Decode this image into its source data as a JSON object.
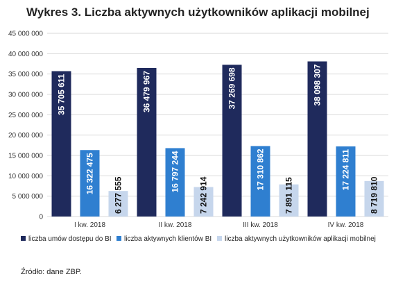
{
  "title": "Wykres 3. Liczba aktywnych użytkowników aplikacji mobilnej",
  "source": "Źródło: dane ZBP.",
  "chart_data": {
    "type": "bar",
    "categories": [
      "I kw. 2018",
      "II kw. 2018",
      "III kw. 2018",
      "IV kw. 2018"
    ],
    "series": [
      {
        "name": "liczba umów dostępu do BI",
        "color": "#1f2a5c",
        "values": [
          35705611,
          36479967,
          37269698,
          38098307
        ],
        "labels": [
          "35 705 611",
          "36 479 967",
          "37 269 698",
          "38 098 307"
        ]
      },
      {
        "name": "liczba aktywnych klientów BI",
        "color": "#2f7fd0",
        "values": [
          16322475,
          16797244,
          17310862,
          17224811
        ],
        "labels": [
          "16 322 475",
          "16 797 244",
          "17 310 862",
          "17 224 811"
        ]
      },
      {
        "name": "liczba aktywnych użytkowników aplikacji mobilnej",
        "color": "#c6d6ec",
        "values": [
          6277555,
          7242914,
          7891115,
          8719810
        ],
        "labels": [
          "6 277 555",
          "7 242 914",
          "7 891 115",
          "8 719 810"
        ]
      }
    ],
    "ylim": [
      0,
      45000000
    ],
    "yticks": [
      0,
      5000000,
      10000000,
      15000000,
      20000000,
      25000000,
      30000000,
      35000000,
      40000000,
      45000000
    ],
    "ytick_labels": [
      "0",
      "5 000 000",
      "10 000 000",
      "15 000 000",
      "20 000 000",
      "25 000 000",
      "30 000 000",
      "35 000 000",
      "40 000 000",
      "45 000 000"
    ],
    "grid": true,
    "legend_position": "bottom"
  }
}
